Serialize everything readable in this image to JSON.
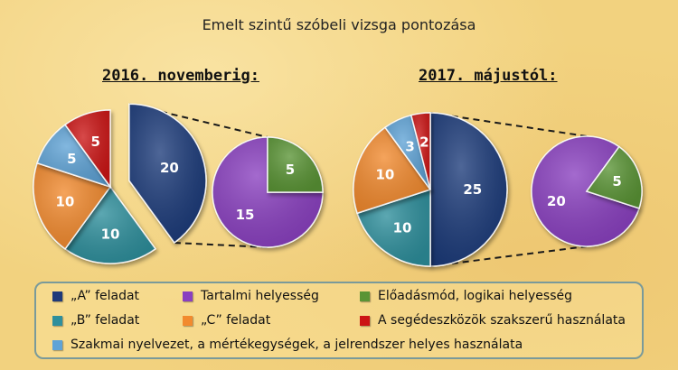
{
  "title": "Emelt szintű szóbeli vizsga pontozása",
  "colors": {
    "A": "#1f3a7a",
    "B": "#2f8f9c",
    "C": "#f28a2e",
    "segedeszkoz": "#cc1414",
    "szakmai": "#5fa3d6",
    "tartalmi": "#8a3fc0",
    "eloadasmod": "#5a9435"
  },
  "chart_data": [
    {
      "type": "pie",
      "title": "2016. novemberig:",
      "slices": [
        {
          "key": "A",
          "value": 20,
          "exploded": true
        },
        {
          "key": "B",
          "value": 10
        },
        {
          "key": "C",
          "value": 10
        },
        {
          "key": "szakmai",
          "value": 5
        },
        {
          "key": "segedeszkoz",
          "value": 5
        }
      ],
      "breakdown": {
        "of": "A",
        "slices": [
          {
            "key": "tartalmi",
            "value": 15
          },
          {
            "key": "eloadasmod",
            "value": 5
          }
        ]
      }
    },
    {
      "type": "pie",
      "title": "2017. májustól:",
      "slices": [
        {
          "key": "A",
          "value": 25,
          "exploded": true
        },
        {
          "key": "B",
          "value": 10
        },
        {
          "key": "C",
          "value": 10
        },
        {
          "key": "szakmai",
          "value": 3
        },
        {
          "key": "segedeszkoz",
          "value": 2
        }
      ],
      "breakdown": {
        "of": "A",
        "slices": [
          {
            "key": "tartalmi",
            "value": 20
          },
          {
            "key": "eloadasmod",
            "value": 5
          }
        ]
      }
    }
  ],
  "legend": {
    "items": [
      {
        "key": "A",
        "label": "„A” feladat"
      },
      {
        "key": "tartalmi",
        "label": "Tartalmi helyesség"
      },
      {
        "key": "eloadasmod",
        "label": "Előadásmód, logikai helyesség"
      },
      {
        "key": "B",
        "label": "„B” feladat"
      },
      {
        "key": "C",
        "label": "„C” feladat"
      },
      {
        "key": "segedeszkoz",
        "label": "A segédeszközök szakszerű használata"
      },
      {
        "key": "szakmai",
        "label": "Szakmai nyelvezet, a mértékegységek, a jelrendszer helyes használata"
      }
    ]
  }
}
